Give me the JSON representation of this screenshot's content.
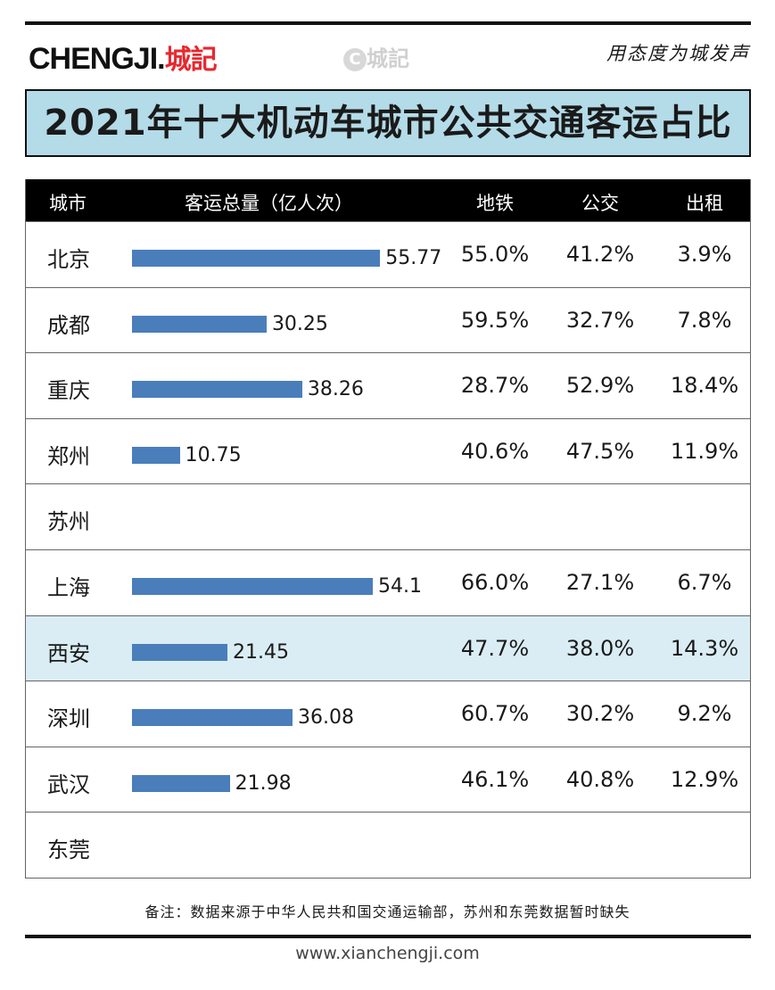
{
  "header": {
    "logo_latin": "CHENGJI.",
    "logo_cn": "城記",
    "watermark": "城記",
    "slogan": "用态度为城发声"
  },
  "title": "2021年十大机动车城市公共交通客运占比",
  "chart_data": {
    "type": "table",
    "title": "2021年十大机动车城市公共交通客运占比",
    "columns": [
      "城市",
      "客运总量（亿人次）",
      "地铁",
      "公交",
      "出租"
    ],
    "bar_color": "#4a7ebb",
    "highlight_color": "#daedf4",
    "rows": [
      {
        "city": "北京",
        "total": "55.77",
        "metro": "55.0%",
        "bus": "41.2%",
        "taxi": "3.9%"
      },
      {
        "city": "成都",
        "total": "30.25",
        "metro": "59.5%",
        "bus": "32.7%",
        "taxi": "7.8%"
      },
      {
        "city": "重庆",
        "total": "38.26",
        "metro": "28.7%",
        "bus": "52.9%",
        "taxi": "18.4%"
      },
      {
        "city": "郑州",
        "total": "10.75",
        "metro": "40.6%",
        "bus": "47.5%",
        "taxi": "11.9%"
      },
      {
        "city": "苏州",
        "total": null,
        "metro": "",
        "bus": "",
        "taxi": ""
      },
      {
        "city": "上海",
        "total": "54.1",
        "metro": "66.0%",
        "bus": "27.1%",
        "taxi": "6.7%"
      },
      {
        "city": "西安",
        "total": "21.45",
        "metro": "47.7%",
        "bus": "38.0%",
        "taxi": "14.3%",
        "highlight": true
      },
      {
        "city": "深圳",
        "total": "36.08",
        "metro": "60.7%",
        "bus": "30.2%",
        "taxi": "9.2%"
      },
      {
        "city": "武汉",
        "total": "21.98",
        "metro": "46.1%",
        "bus": "40.8%",
        "taxi": "12.9%"
      },
      {
        "city": "东莞",
        "total": null,
        "metro": "",
        "bus": "",
        "taxi": ""
      }
    ]
  },
  "footer": {
    "note": "备注：数据来源于中华人民共和国交通运输部，苏州和东莞数据暂时缺失",
    "website": "www.xianchengji.com"
  }
}
